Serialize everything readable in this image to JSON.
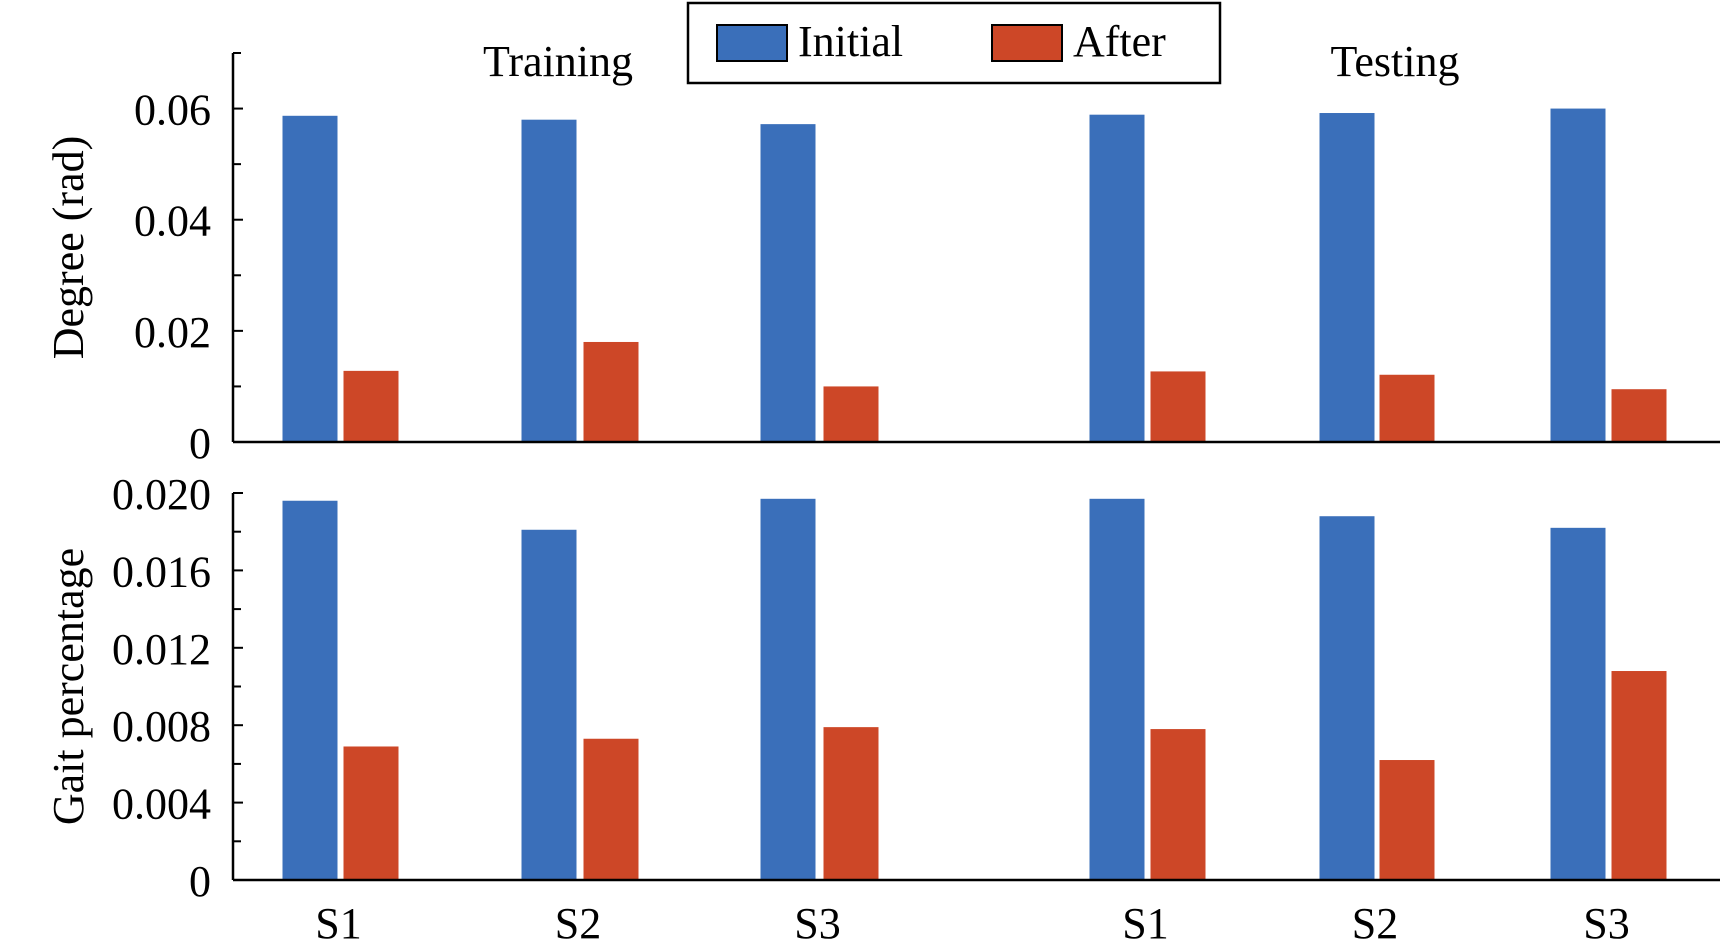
{
  "chart_data": {
    "type": "bar",
    "x_categories": [
      "S1",
      "S2",
      "S3",
      "S1",
      "S2",
      "S3"
    ],
    "group_labels": [
      "Training",
      "Testing"
    ],
    "legend": {
      "placement": "top-center",
      "series": [
        {
          "name": "Initial",
          "color": "#3A6FBA"
        },
        {
          "name": "After",
          "color": "#CD4727"
        }
      ]
    },
    "panels": [
      {
        "ylabel": "Degree (rad)",
        "ylim": [
          0,
          0.07
        ],
        "yticks": [
          0,
          0.02,
          0.04,
          0.06
        ],
        "ytick_labels": [
          "0",
          "0.02",
          "0.04",
          "0.06"
        ],
        "minor_ticks": [
          0.01,
          0.03,
          0.05,
          0.07
        ],
        "series": [
          {
            "name": "Initial",
            "values": [
              0.0587,
              0.058,
              0.0572,
              0.0589,
              0.0592,
              0.06
            ]
          },
          {
            "name": "After",
            "values": [
              0.0128,
              0.018,
              0.01,
              0.0127,
              0.0121,
              0.0095
            ]
          }
        ]
      },
      {
        "ylabel": "Gait percentage",
        "ylim": [
          0,
          0.02
        ],
        "yticks": [
          0,
          0.004,
          0.008,
          0.012,
          0.016,
          0.02
        ],
        "ytick_labels": [
          "0",
          "0.004",
          "0.008",
          "0.012",
          "0.016",
          "0.020"
        ],
        "minor_ticks": [
          0.002,
          0.006,
          0.01,
          0.014,
          0.018
        ],
        "series": [
          {
            "name": "Initial",
            "values": [
              0.0196,
              0.0181,
              0.0197,
              0.0197,
              0.0188,
              0.0182
            ]
          },
          {
            "name": "After",
            "values": [
              0.0069,
              0.0073,
              0.0079,
              0.0078,
              0.0062,
              0.0108
            ]
          }
        ]
      }
    ]
  }
}
